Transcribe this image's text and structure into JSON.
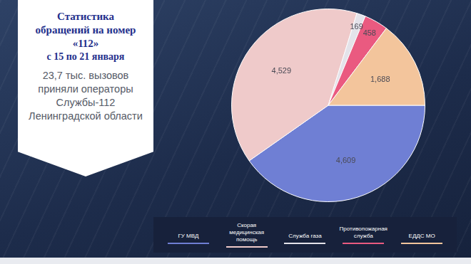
{
  "chart_data": {
    "type": "pie",
    "title": "Статистика обращений на номер «112»",
    "subtitle": "с 15 по 21 января",
    "annotations": [
      "23,7 тыс. вызовов приняли операторы Службы-112 Ленинградской области"
    ],
    "categories": [
      "ГУ МВД",
      "Скорая медицинская помощь",
      "Служба газа",
      "Противопожарная служба",
      "ЕДДС МО"
    ],
    "values": [
      4609,
      4529,
      169,
      458,
      1688
    ],
    "value_labels": [
      "4,609",
      "4,529",
      "169",
      "458",
      "1,688"
    ],
    "colors": [
      "#6f7fd4",
      "#efcaca",
      "#e4e3ea",
      "#ea5a80",
      "#f3c59c"
    ],
    "data_labels": true,
    "legend": "bottom"
  }
}
